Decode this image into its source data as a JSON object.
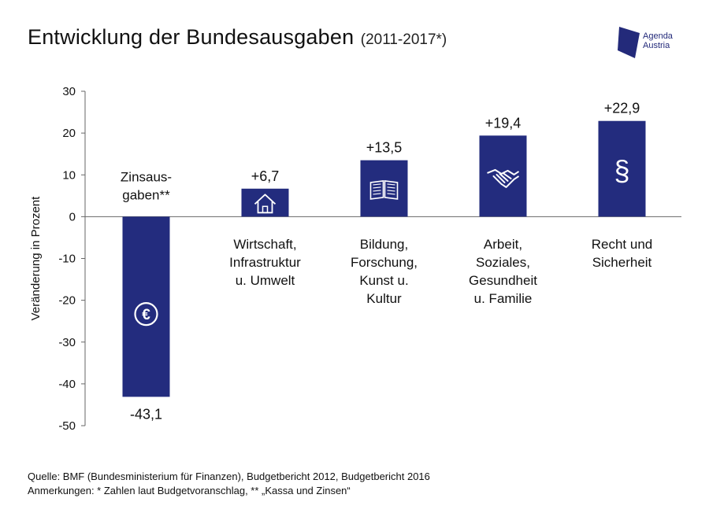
{
  "title": "Entwicklung der Bundesausgaben",
  "subtitle": "(2011-2017*)",
  "logo": {
    "line1": "Agenda",
    "line2": "Austria",
    "color": "#232a7a"
  },
  "footer": {
    "source": "Quelle: BMF (Bundesministerium für Finanzen), Budgetbericht 2012, Budgetbericht 2016",
    "notes": "Anmerkungen: * Zahlen laut Budgetvoranschlag,  ** „Kassa und Zinsen“"
  },
  "chart_data": {
    "type": "bar",
    "ylabel": "Veränderung in Prozent",
    "ylim": [
      -50,
      30
    ],
    "yticks": [
      30,
      20,
      10,
      0,
      -10,
      -20,
      -30,
      -40,
      -50
    ],
    "bar_color": "#232c7e",
    "categories": [
      {
        "lines": [
          "Zinsaus-",
          "gaben**"
        ],
        "value": -43.1,
        "value_label": "-43,1",
        "icon": "euro-icon"
      },
      {
        "lines": [
          "Wirtschaft,",
          "Infrastruktur",
          "u. Umwelt"
        ],
        "value": 6.7,
        "value_label": "+6,7",
        "icon": "house-icon"
      },
      {
        "lines": [
          "Bildung,",
          "Forschung,",
          "Kunst u.",
          "Kultur"
        ],
        "value": 13.5,
        "value_label": "+13,5",
        "icon": "book-icon"
      },
      {
        "lines": [
          "Arbeit,",
          "Soziales,",
          "Gesundheit",
          "u. Familie"
        ],
        "value": 19.4,
        "value_label": "+19,4",
        "icon": "handshake-icon"
      },
      {
        "lines": [
          "Recht und",
          "Sicherheit"
        ],
        "value": 22.9,
        "value_label": "+22,9",
        "icon": "paragraph-icon"
      }
    ]
  }
}
